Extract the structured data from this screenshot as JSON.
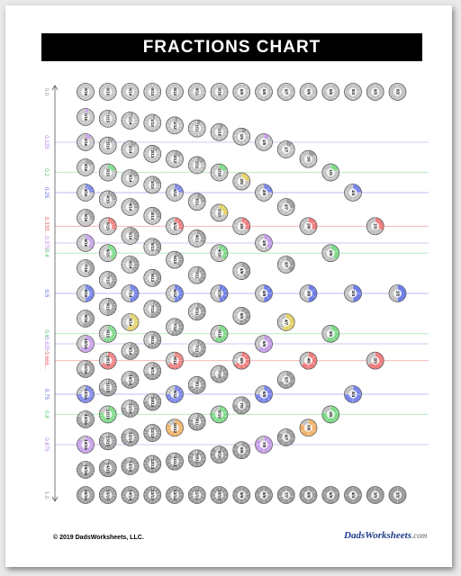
{
  "page": {
    "title": "FRACTIONS CHART",
    "copyright": "© 2019 DadsWorksheets, LLC.",
    "brand_main": "Dads",
    "brand_rest": "Worksheets",
    "brand_tail": ".com"
  },
  "colors": {
    "1/2": "#6f7ee6",
    "1/3": "#ee7f7f",
    "2/3": "#ee7f7f",
    "1/4": "#7b85e8",
    "3/4": "#7b85e8",
    "1/5": "#7fd98a",
    "2/5": "#7fd98a",
    "3/5": "#7fd98a",
    "4/5": "#7fd98a",
    "1/8": "#c59ee8",
    "3/8": "#c59ee8",
    "5/8": "#c59ee8",
    "7/8": "#c59ee8",
    "4/7": "#e3d268",
    "2/9": "#e3d268",
    "3/10": "#e3d268",
    "5/6": "#f1b36b",
    "1/16": "#c59ee8"
  },
  "chart_data": {
    "type": "table",
    "denominators": [
      16,
      15,
      14,
      13,
      12,
      11,
      10,
      9,
      8,
      7,
      6,
      5,
      4,
      3,
      2
    ],
    "axis_labels": [
      {
        "text": "0.0",
        "value": 0,
        "color": "#999999"
      },
      {
        "text": "0.125",
        "value": 0.125,
        "color": "#b57ee8"
      },
      {
        "text": "0.2",
        "value": 0.2,
        "color": "#55c36a"
      },
      {
        "text": "0.25",
        "value": 0.25,
        "color": "#5a67d8"
      },
      {
        "text": "0.333...",
        "value": 0.3333,
        "color": "#e25555"
      },
      {
        "text": "0.375",
        "value": 0.375,
        "color": "#b57ee8"
      },
      {
        "text": "0.4",
        "value": 0.4,
        "color": "#55c36a"
      },
      {
        "text": "0.5",
        "value": 0.5,
        "color": "#5a67d8"
      },
      {
        "text": "0.6",
        "value": 0.6,
        "color": "#55c36a"
      },
      {
        "text": "0.625",
        "value": 0.625,
        "color": "#b57ee8"
      },
      {
        "text": "0.666...",
        "value": 0.6667,
        "color": "#e25555"
      },
      {
        "text": "0.75",
        "value": 0.75,
        "color": "#5a67d8"
      },
      {
        "text": "0.8",
        "value": 0.8,
        "color": "#55c36a"
      },
      {
        "text": "0.875",
        "value": 0.875,
        "color": "#b57ee8"
      },
      {
        "text": "1.0",
        "value": 1,
        "color": "#999999"
      }
    ],
    "gridlines": [
      {
        "value": 0.125,
        "color": "#d8c3f0"
      },
      {
        "value": 0.2,
        "color": "#b9ecc1"
      },
      {
        "value": 0.25,
        "color": "#b9bff2"
      },
      {
        "value": 0.3333,
        "color": "#f3b9b9"
      },
      {
        "value": 0.375,
        "color": "#d8c3f0"
      },
      {
        "value": 0.4,
        "color": "#b9ecc1"
      },
      {
        "value": 0.5,
        "color": "#b9bff2"
      },
      {
        "value": 0.6,
        "color": "#b9ecc1"
      },
      {
        "value": 0.625,
        "color": "#d8c3f0"
      },
      {
        "value": 0.6667,
        "color": "#f3b9b9"
      },
      {
        "value": 0.75,
        "color": "#b9bff2"
      },
      {
        "value": 0.8,
        "color": "#b9ecc1"
      },
      {
        "value": 0.875,
        "color": "#d8c3f0"
      }
    ]
  }
}
